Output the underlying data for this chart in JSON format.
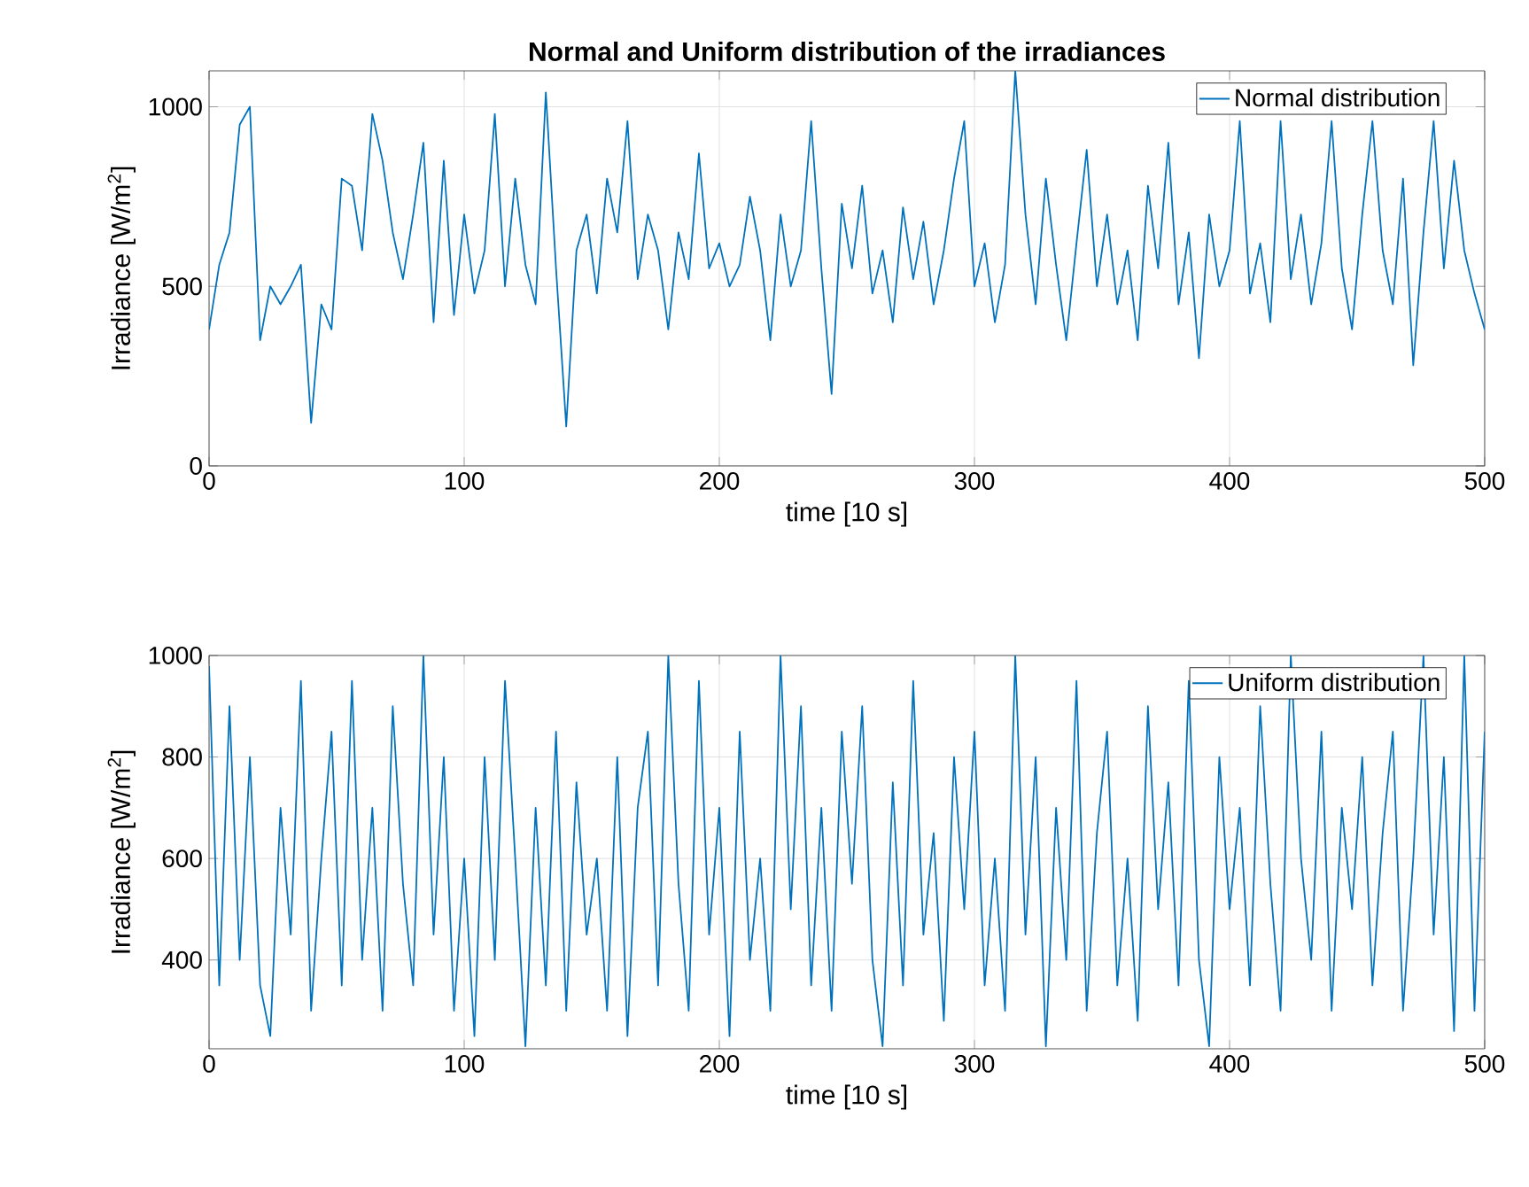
{
  "chart_data": [
    {
      "type": "line",
      "title": "Normal and Uniform distribution of the irradiances",
      "xlabel": "time [10 s]",
      "ylabel": "Irradiance [W/m$^{2}$]",
      "x": [
        0,
        4,
        8,
        12,
        16,
        20,
        24,
        28,
        32,
        36,
        40,
        44,
        48,
        52,
        56,
        60,
        64,
        68,
        72,
        76,
        80,
        84,
        88,
        92,
        96,
        100,
        104,
        108,
        112,
        116,
        120,
        124,
        128,
        132,
        136,
        140,
        144,
        148,
        152,
        156,
        160,
        164,
        168,
        172,
        176,
        180,
        184,
        188,
        192,
        196,
        200,
        204,
        208,
        212,
        216,
        220,
        224,
        228,
        232,
        236,
        240,
        244,
        248,
        252,
        256,
        260,
        264,
        268,
        272,
        276,
        280,
        284,
        288,
        292,
        296,
        300,
        304,
        308,
        312,
        316,
        320,
        324,
        328,
        332,
        336,
        340,
        344,
        348,
        352,
        356,
        360,
        364,
        368,
        372,
        376,
        380,
        384,
        388,
        392,
        396,
        400,
        404,
        408,
        412,
        416,
        420,
        424,
        428,
        432,
        436,
        440,
        444,
        448,
        452,
        456,
        460,
        464,
        468,
        472,
        476,
        480,
        484,
        488,
        492,
        496,
        500
      ],
      "series": [
        {
          "name": "Normal distribution",
          "color": "#0072bd",
          "values": [
            380,
            560,
            650,
            950,
            1000,
            350,
            500,
            450,
            500,
            560,
            120,
            450,
            380,
            800,
            780,
            600,
            980,
            850,
            650,
            520,
            700,
            900,
            400,
            850,
            420,
            700,
            480,
            600,
            980,
            500,
            800,
            560,
            450,
            1040,
            550,
            110,
            600,
            700,
            480,
            800,
            650,
            960,
            520,
            700,
            600,
            380,
            650,
            520,
            870,
            550,
            620,
            500,
            560,
            750,
            600,
            350,
            700,
            500,
            600,
            960,
            550,
            200,
            730,
            550,
            780,
            480,
            600,
            400,
            720,
            520,
            680,
            450,
            600,
            800,
            960,
            500,
            620,
            400,
            560,
            1100,
            700,
            450,
            800,
            560,
            350,
            620,
            880,
            500,
            700,
            450,
            600,
            350,
            780,
            550,
            900,
            450,
            650,
            300,
            700,
            500,
            600,
            960,
            480,
            620,
            400,
            960,
            520,
            700,
            450,
            620,
            960,
            550,
            380,
            700,
            960,
            600,
            450,
            800,
            280,
            650,
            960,
            550,
            850,
            600,
            480,
            380
          ]
        }
      ],
      "xlim": [
        0,
        500
      ],
      "ylim": [
        0,
        1100
      ],
      "xticks": [
        0,
        100,
        200,
        300,
        400,
        500
      ],
      "yticks": [
        0,
        500,
        1000
      ],
      "grid": true,
      "legend": "top right"
    },
    {
      "type": "line",
      "xlabel": "time [10 s]",
      "ylabel": "Irradiance [W/m$^{2}$]",
      "x": [
        0,
        4,
        8,
        12,
        16,
        20,
        24,
        28,
        32,
        36,
        40,
        44,
        48,
        52,
        56,
        60,
        64,
        68,
        72,
        76,
        80,
        84,
        88,
        92,
        96,
        100,
        104,
        108,
        112,
        116,
        120,
        124,
        128,
        132,
        136,
        140,
        144,
        148,
        152,
        156,
        160,
        164,
        168,
        172,
        176,
        180,
        184,
        188,
        192,
        196,
        200,
        204,
        208,
        212,
        216,
        220,
        224,
        228,
        232,
        236,
        240,
        244,
        248,
        252,
        256,
        260,
        264,
        268,
        272,
        276,
        280,
        284,
        288,
        292,
        296,
        300,
        304,
        308,
        312,
        316,
        320,
        324,
        328,
        332,
        336,
        340,
        344,
        348,
        352,
        356,
        360,
        364,
        368,
        372,
        376,
        380,
        384,
        388,
        392,
        396,
        400,
        404,
        408,
        412,
        416,
        420,
        424,
        428,
        432,
        436,
        440,
        444,
        448,
        452,
        456,
        460,
        464,
        468,
        472,
        476,
        480,
        484,
        488,
        492,
        496,
        500
      ],
      "series": [
        {
          "name": "Uniform distribution",
          "color": "#0072bd",
          "values": [
            980,
            350,
            900,
            400,
            800,
            350,
            250,
            700,
            450,
            950,
            300,
            600,
            850,
            350,
            950,
            400,
            700,
            300,
            900,
            550,
            350,
            1000,
            450,
            800,
            300,
            600,
            250,
            800,
            400,
            950,
            600,
            230,
            700,
            350,
            850,
            300,
            750,
            450,
            600,
            300,
            800,
            250,
            700,
            850,
            350,
            1000,
            550,
            300,
            950,
            450,
            700,
            250,
            850,
            400,
            600,
            300,
            1000,
            500,
            900,
            350,
            700,
            300,
            850,
            550,
            900,
            400,
            230,
            750,
            350,
            950,
            450,
            650,
            280,
            800,
            500,
            850,
            350,
            600,
            300,
            1000,
            450,
            800,
            230,
            700,
            400,
            950,
            300,
            650,
            850,
            350,
            600,
            280,
            900,
            500,
            750,
            350,
            950,
            400,
            230,
            800,
            500,
            700,
            350,
            900,
            550,
            300,
            1000,
            600,
            400,
            850,
            300,
            700,
            500,
            800,
            350,
            650,
            850,
            300,
            600,
            1000,
            450,
            800,
            260,
            1000,
            300,
            850
          ]
        }
      ],
      "xlim": [
        0,
        500
      ],
      "ylim": [
        225,
        1000
      ],
      "xticks": [
        0,
        100,
        200,
        300,
        400,
        500
      ],
      "yticks": [
        400,
        600,
        800,
        1000
      ],
      "grid": true,
      "legend": "top right"
    }
  ]
}
